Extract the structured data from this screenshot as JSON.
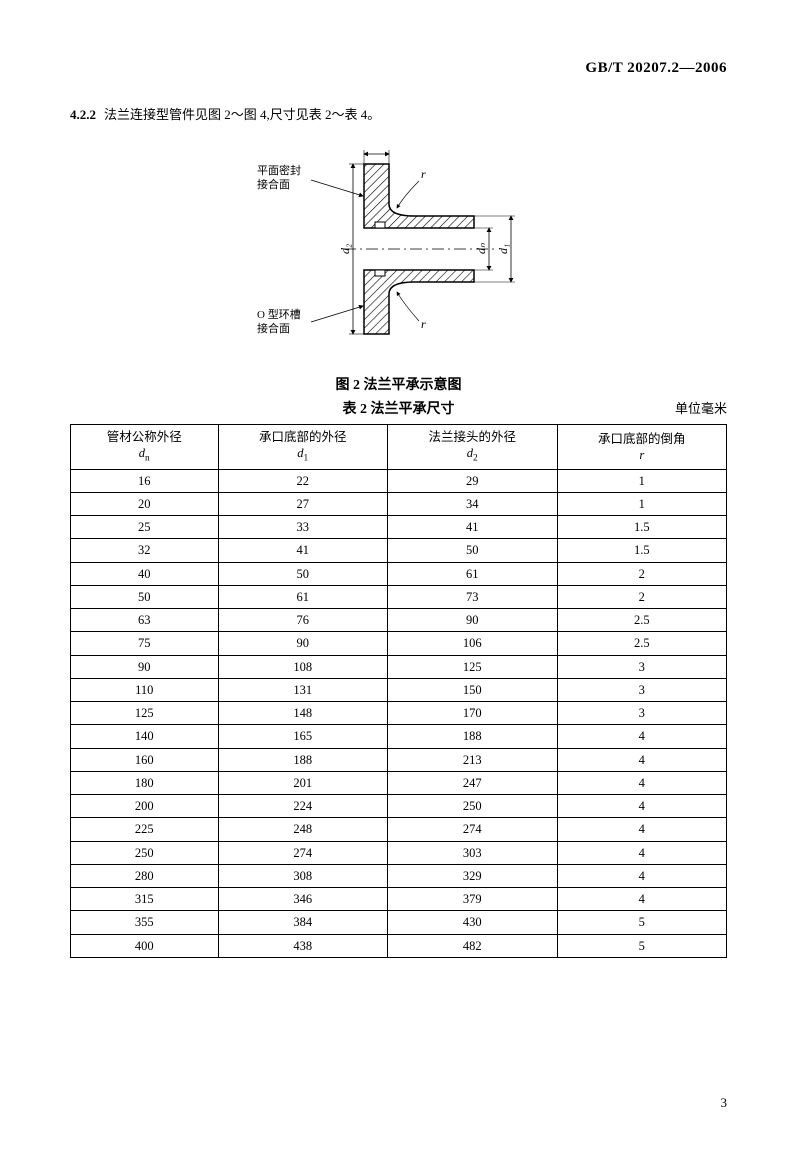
{
  "header": {
    "standard_code": "GB/T 20207.2—2006"
  },
  "section": {
    "number": "4.2.2",
    "text": "法兰连接型管件见图 2～图 4,尺寸见表 2～表 4。"
  },
  "diagram": {
    "label_top": "平面密封\n接合面",
    "label_bottom": "O 型环槽\n接合面",
    "dim_r": "r",
    "dim_d2": "d₂",
    "dim_dn": "dₙ",
    "dim_d1": "d₁"
  },
  "figure": {
    "caption": "图 2    法兰平承示意图"
  },
  "table": {
    "caption": "表 2    法兰平承尺寸",
    "unit": "单位毫米",
    "columns": [
      {
        "title": "管材公称外径",
        "symbol": "d",
        "sub": "n"
      },
      {
        "title": "承口底部的外径",
        "symbol": "d",
        "sub": "1"
      },
      {
        "title": "法兰接头的外径",
        "symbol": "d",
        "sub": "2"
      },
      {
        "title": "承口底部的倒角",
        "symbol": "r",
        "sub": ""
      }
    ],
    "rows": [
      [
        "16",
        "22",
        "29",
        "1"
      ],
      [
        "20",
        "27",
        "34",
        "1"
      ],
      [
        "25",
        "33",
        "41",
        "1.5"
      ],
      [
        "32",
        "41",
        "50",
        "1.5"
      ],
      [
        "40",
        "50",
        "61",
        "2"
      ],
      [
        "50",
        "61",
        "73",
        "2"
      ],
      [
        "63",
        "76",
        "90",
        "2.5"
      ],
      [
        "75",
        "90",
        "106",
        "2.5"
      ],
      [
        "90",
        "108",
        "125",
        "3"
      ],
      [
        "110",
        "131",
        "150",
        "3"
      ],
      [
        "125",
        "148",
        "170",
        "3"
      ],
      [
        "140",
        "165",
        "188",
        "4"
      ],
      [
        "160",
        "188",
        "213",
        "4"
      ],
      [
        "180",
        "201",
        "247",
        "4"
      ],
      [
        "200",
        "224",
        "250",
        "4"
      ],
      [
        "225",
        "248",
        "274",
        "4"
      ],
      [
        "250",
        "274",
        "303",
        "4"
      ],
      [
        "280",
        "308",
        "329",
        "4"
      ],
      [
        "315",
        "346",
        "379",
        "4"
      ],
      [
        "355",
        "384",
        "430",
        "5"
      ],
      [
        "400",
        "438",
        "482",
        "5"
      ]
    ]
  },
  "page_number": "3"
}
